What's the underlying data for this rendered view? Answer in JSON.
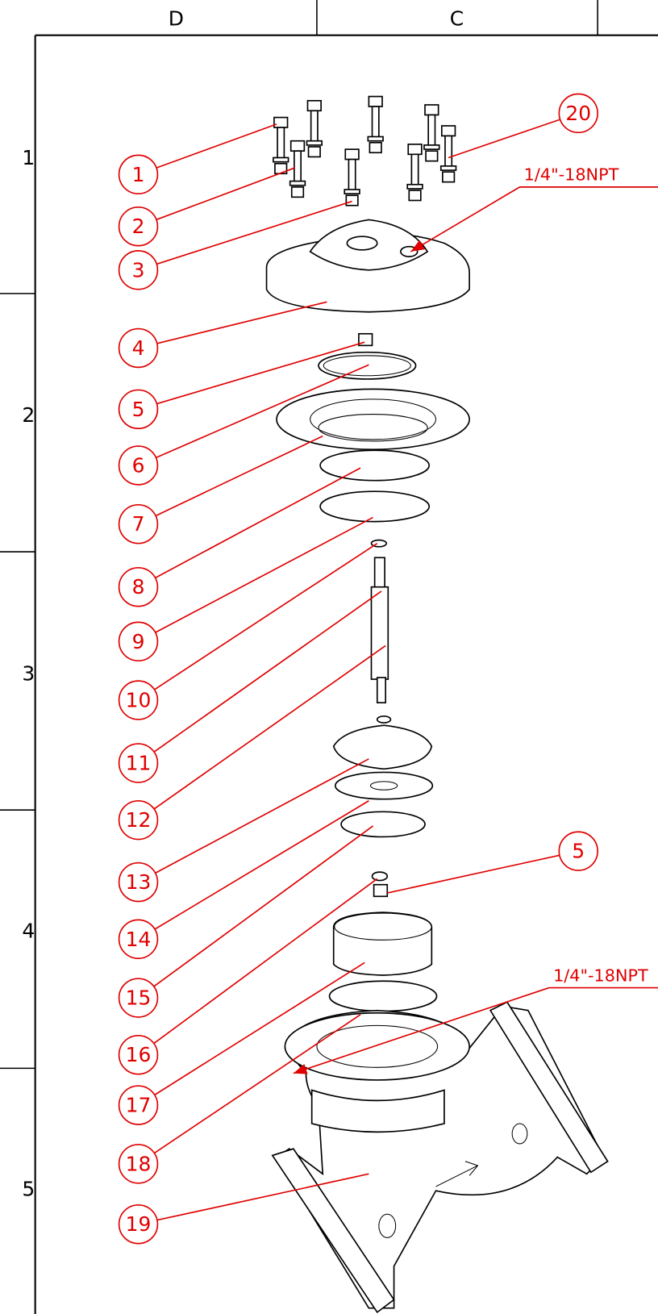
{
  "frame": {
    "columns": [
      "D",
      "C"
    ],
    "rows": [
      "1",
      "2",
      "3",
      "4",
      "5"
    ]
  },
  "callouts": [
    "1",
    "2",
    "3",
    "4",
    "5",
    "6",
    "7",
    "8",
    "9",
    "10",
    "11",
    "12",
    "13",
    "14",
    "15",
    "16",
    "17",
    "18",
    "19",
    "20",
    "5"
  ],
  "notes": [
    "1/4\"-18NPT",
    "1/4\"-18NPT"
  ]
}
